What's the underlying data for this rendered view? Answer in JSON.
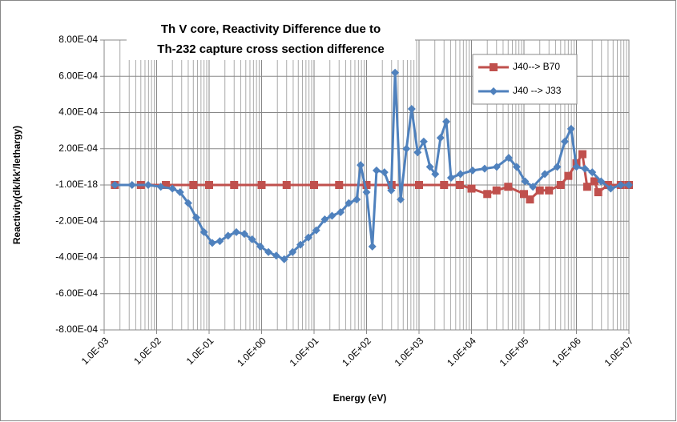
{
  "chart_data": {
    "type": "line",
    "title": "Th V core, Reactivity  Difference due to",
    "subtitle": "Th-232 capture cross section difference",
    "x_label": "Energy (eV)",
    "y_label": "Reactivity(dk/kk'/lethargy)",
    "xscale": "log",
    "grid": true,
    "minor_grid": true,
    "legend": "upper right",
    "xlim": [
      0.001,
      10000000
    ],
    "xticks": [
      {
        "value": 0.001,
        "label": "1.0E-03"
      },
      {
        "value": 0.01,
        "label": "1.0E-02"
      },
      {
        "value": 0.1,
        "label": "1.0E-01"
      },
      {
        "value": 1,
        "label": "1.0E+00"
      },
      {
        "value": 10,
        "label": "1.0E+01"
      },
      {
        "value": 100,
        "label": "1.0E+02"
      },
      {
        "value": 1000,
        "label": "1.0E+03"
      },
      {
        "value": 10000,
        "label": "1.0E+04"
      },
      {
        "value": 100000,
        "label": "1.0E+05"
      },
      {
        "value": 1000000,
        "label": "1.0E+06"
      },
      {
        "value": 10000000,
        "label": "1.0E+07"
      }
    ],
    "ylim": [
      -0.0008,
      0.0008
    ],
    "yticks": [
      {
        "value": -0.0008,
        "label": "-8.00E-04"
      },
      {
        "value": -0.0006,
        "label": "-6.00E-04"
      },
      {
        "value": -0.0004,
        "label": "-4.00E-04"
      },
      {
        "value": -0.0002,
        "label": "-2.00E-04"
      },
      {
        "value": -1e-18,
        "label": "-1.00E-18"
      },
      {
        "value": 0.0002,
        "label": "2.00E-04"
      },
      {
        "value": 0.0004,
        "label": "4.00E-04"
      },
      {
        "value": 0.0006,
        "label": "6.00E-04"
      },
      {
        "value": 0.0008,
        "label": "8.00E-04"
      }
    ],
    "series": [
      {
        "name": "J40--> B70",
        "color": "#c0504d",
        "marker": "square",
        "x": [
          0.0016,
          0.005,
          0.015,
          0.05,
          0.1,
          0.3,
          1,
          3,
          10,
          30,
          100,
          300,
          1000,
          3000,
          6000,
          10000,
          20000,
          30000,
          50000,
          100000,
          130000,
          200000,
          300000,
          500000,
          700000,
          1000000,
          1300000,
          1600000,
          2200000,
          2600000,
          4000000,
          7000000,
          10000000
        ],
        "values": [
          0,
          0,
          0,
          0,
          0,
          0,
          0,
          0,
          0,
          0,
          0,
          0,
          0,
          0,
          0,
          -2e-05,
          -5e-05,
          -3e-05,
          -1e-05,
          -5e-05,
          -8e-05,
          -3e-05,
          -3e-05,
          0,
          5e-05,
          0.00012,
          0.00017,
          -1e-05,
          2e-05,
          -4e-05,
          0,
          0,
          0
        ]
      },
      {
        "name": "J40 --> J33",
        "color": "#4f81bd",
        "marker": "diamond",
        "x": [
          0.0016,
          0.0034,
          0.0069,
          0.012,
          0.02,
          0.028,
          0.04,
          0.057,
          0.08,
          0.115,
          0.16,
          0.23,
          0.33,
          0.47,
          0.66,
          0.95,
          1.35,
          1.9,
          2.7,
          3.9,
          5.5,
          7.8,
          11,
          16,
          22,
          32,
          46,
          65,
          77,
          100,
          129,
          155,
          219,
          295,
          350,
          446,
          575,
          724,
          940,
          1230,
          1620,
          2040,
          2570,
          3310,
          4070,
          6170,
          10500,
          17800,
          30200,
          51300,
          72400,
          105000,
          148000,
          250000,
          430000,
          600000,
          790000,
          1000000,
          1450000,
          2000000,
          2950000,
          4500000,
          7000000,
          10000000
        ],
        "values": [
          0,
          0,
          0,
          -1e-05,
          -2e-05,
          -4e-05,
          -0.0001,
          -0.00018,
          -0.00026,
          -0.00032,
          -0.00031,
          -0.00028,
          -0.00026,
          -0.00027,
          -0.0003,
          -0.00034,
          -0.00037,
          -0.00039,
          -0.00041,
          -0.00037,
          -0.00033,
          -0.00029,
          -0.00025,
          -0.00019,
          -0.00017,
          -0.00015,
          -0.0001,
          -8e-05,
          0.00011,
          -4e-05,
          -0.00034,
          8e-05,
          7e-05,
          -3e-05,
          0.00062,
          -8e-05,
          0.0002,
          0.00042,
          0.00018,
          0.00024,
          0.0001,
          6e-05,
          0.00026,
          0.00035,
          4e-05,
          6e-05,
          8e-05,
          9e-05,
          0.0001,
          0.00015,
          0.0001,
          2e-05,
          -1e-05,
          6e-05,
          0.0001,
          0.00024,
          0.00031,
          0.0001,
          9e-05,
          7e-05,
          2e-05,
          -2e-05,
          0,
          0
        ]
      }
    ]
  }
}
